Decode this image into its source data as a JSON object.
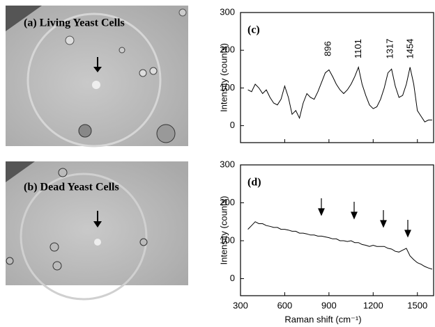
{
  "images": [
    {
      "label": "(a) Living Yeast Cells"
    },
    {
      "label": "(b) Dead Yeast Cells"
    }
  ],
  "chart_data": [
    {
      "type": "line",
      "panel_label": "(c)",
      "ylabel": "Intensity (counts)",
      "x": [
        350,
        375,
        400,
        425,
        450,
        475,
        500,
        525,
        550,
        575,
        600,
        625,
        650,
        675,
        700,
        725,
        750,
        775,
        800,
        825,
        850,
        875,
        900,
        925,
        950,
        975,
        1000,
        1025,
        1050,
        1075,
        1100,
        1125,
        1150,
        1175,
        1200,
        1225,
        1250,
        1275,
        1300,
        1325,
        1350,
        1375,
        1400,
        1425,
        1450,
        1475,
        1500,
        1525,
        1550,
        1575,
        1600
      ],
      "values": [
        95,
        90,
        110,
        100,
        85,
        95,
        75,
        60,
        55,
        70,
        105,
        75,
        30,
        40,
        20,
        60,
        85,
        75,
        70,
        90,
        115,
        140,
        148,
        130,
        110,
        95,
        85,
        95,
        110,
        130,
        155,
        110,
        80,
        55,
        45,
        50,
        70,
        100,
        140,
        150,
        105,
        75,
        80,
        110,
        155,
        110,
        40,
        25,
        10,
        15,
        15
      ],
      "peak_labels": [
        896,
        1101,
        1317,
        1454
      ],
      "color": "#000000",
      "xlim": [
        300,
        1610
      ],
      "xticks": [
        300,
        600,
        900,
        1200,
        1500
      ],
      "ylim": [
        -45,
        300
      ],
      "yticks": [
        0,
        100,
        200,
        300
      ]
    },
    {
      "type": "line",
      "panel_label": "(d)",
      "ylabel": "Intensity (counts)",
      "xlabel": "Raman shift (cm⁻¹)",
      "x": [
        350,
        375,
        400,
        425,
        450,
        475,
        500,
        525,
        550,
        575,
        600,
        625,
        650,
        675,
        700,
        725,
        750,
        775,
        800,
        825,
        850,
        875,
        900,
        925,
        950,
        975,
        1000,
        1025,
        1050,
        1075,
        1100,
        1125,
        1150,
        1175,
        1200,
        1225,
        1250,
        1275,
        1300,
        1325,
        1350,
        1375,
        1400,
        1425,
        1450,
        1475,
        1500,
        1525,
        1550,
        1575,
        1600
      ],
      "values": [
        130,
        140,
        150,
        145,
        145,
        140,
        138,
        135,
        135,
        130,
        130,
        128,
        125,
        125,
        120,
        120,
        118,
        115,
        115,
        112,
        112,
        110,
        108,
        105,
        105,
        100,
        100,
        98,
        100,
        95,
        95,
        90,
        88,
        85,
        88,
        85,
        85,
        85,
        80,
        78,
        72,
        70,
        75,
        80,
        60,
        50,
        42,
        38,
        32,
        28,
        25
      ],
      "color": "#000000",
      "xlim": [
        300,
        1610
      ],
      "xticks": [
        300,
        600,
        900,
        1200,
        1500
      ],
      "ylim": [
        -45,
        300
      ],
      "yticks": [
        0,
        100,
        200,
        300
      ]
    }
  ]
}
